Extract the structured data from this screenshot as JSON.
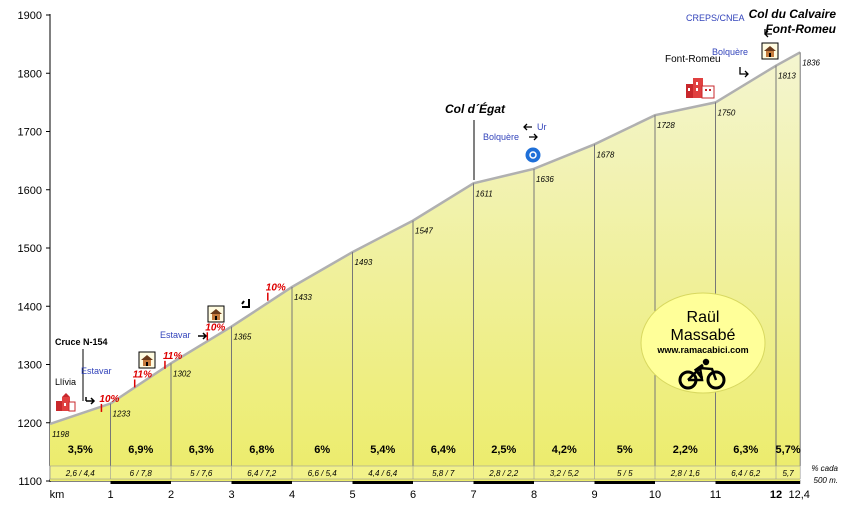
{
  "chart_data": {
    "type": "area",
    "ylim": [
      1100,
      1900
    ],
    "xlim": [
      0,
      12.4
    ],
    "y_ticks": [
      1100,
      1200,
      1300,
      1400,
      1500,
      1600,
      1700,
      1800,
      1900
    ],
    "x_ticks": [
      "km",
      "1",
      "2",
      "3",
      "4",
      "5",
      "6",
      "7",
      "8",
      "9",
      "10",
      "11",
      "12",
      "12,4"
    ],
    "profile": [
      {
        "x": 0,
        "y": 1198
      },
      {
        "x": 1,
        "y": 1233
      },
      {
        "x": 2,
        "y": 1302
      },
      {
        "x": 3,
        "y": 1365
      },
      {
        "x": 4,
        "y": 1433
      },
      {
        "x": 5,
        "y": 1493
      },
      {
        "x": 6,
        "y": 1547
      },
      {
        "x": 7,
        "y": 1611
      },
      {
        "x": 8,
        "y": 1636
      },
      {
        "x": 9,
        "y": 1678
      },
      {
        "x": 10,
        "y": 1728
      },
      {
        "x": 11,
        "y": 1750
      },
      {
        "x": 12,
        "y": 1813
      },
      {
        "x": 12.4,
        "y": 1836
      }
    ],
    "altitude_labels": [
      "1198",
      "1233",
      "1302",
      "1365",
      "1433",
      "1493",
      "1547",
      "1611",
      "1636",
      "1678",
      "1728",
      "1750",
      "1813",
      "1836"
    ],
    "segment_gradients": [
      "3,5%",
      "6,9%",
      "6,3%",
      "6,8%",
      "6%",
      "5,4%",
      "6,4%",
      "2,5%",
      "4,2%",
      "5%",
      "2,2%",
      "6,3%",
      "5,7%"
    ],
    "half_km_gradients": [
      "2,6 / 4,4",
      "6 / 7,8",
      "5 / 7,6",
      "6,4 / 7,2",
      "6,6 / 5,4",
      "4,4 / 6,4",
      "5,8 / 7",
      "2,8 / 2,2",
      "3,2 / 5,2",
      "5 / 5",
      "2,8 / 1,6",
      "6,4 / 6,2",
      "5,7"
    ],
    "half_km_note": [
      "% cada",
      "500 m."
    ],
    "peak_gradients": [
      {
        "x": 0.85,
        "y": 1222,
        "label": "10%"
      },
      {
        "x": 1.4,
        "y": 1264,
        "label": "11%"
      },
      {
        "x": 1.9,
        "y": 1296,
        "label": "11%"
      },
      {
        "x": 2.6,
        "y": 1345,
        "label": "10%"
      },
      {
        "x": 3.6,
        "y": 1413,
        "label": "10%"
      }
    ],
    "annotations": {
      "title": "Col du Calvaire",
      "title2": "Font-Romeu",
      "col_egat": "Col d´Égat",
      "crossing": "Cruce N-154",
      "town_start": "Llívia",
      "town_font_romeu": "Font-Romeu",
      "dir_estavar_1": "Estavar",
      "dir_estavar_2": "Estavar",
      "dir_ur": "Ur",
      "dir_bolquere_1": "Bolquère",
      "dir_bolquere_2": "Bolquère",
      "dir_creps": "CREPS/CNEA"
    },
    "author": {
      "name1": "Raül",
      "name2": "Massabé",
      "site": "www.ramacabici.com"
    },
    "colors": {
      "fill_top": "#f4f5d0",
      "fill_bottom": "#ecec6a",
      "band": "#f2f28a",
      "grade_red": "#dd0000",
      "direction_blue": "#3344bb",
      "logo_bg": "#ffff99",
      "profile_line": "#b0b0b0"
    }
  }
}
